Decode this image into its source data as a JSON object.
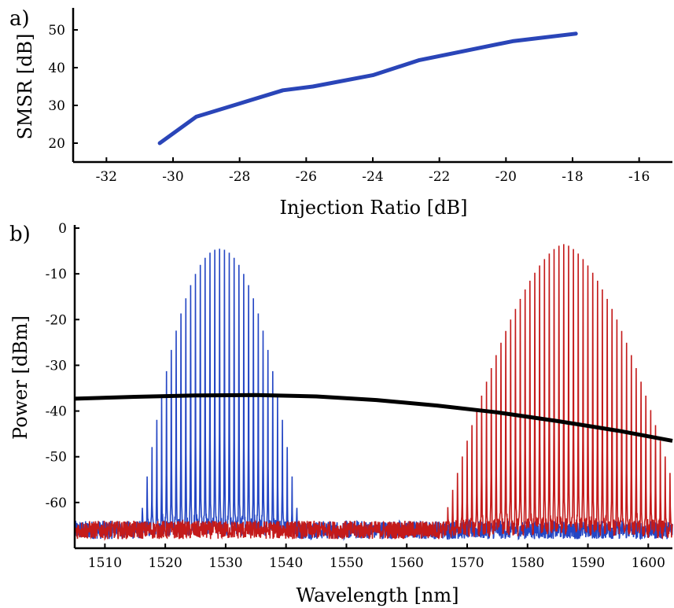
{
  "colors": {
    "smsr": "#2a45b8",
    "blue": "#2446c4",
    "red": "#c41a1a",
    "black": "#000000"
  },
  "panel_a": {
    "label": "a)"
  },
  "panel_b": {
    "label": "b)"
  },
  "chart_data": [
    {
      "type": "line",
      "xlabel": "Injection Ratio [dB]",
      "ylabel": "SMSR [dB]",
      "xlim": [
        -33,
        -15
      ],
      "ylim": [
        15,
        55
      ],
      "xticks": [
        -32,
        -30,
        -28,
        -26,
        -24,
        -22,
        -20,
        -18,
        -16
      ],
      "yticks": [
        20,
        30,
        40,
        50
      ],
      "series": [
        {
          "x": [
            -30.4,
            -29.3,
            -28,
            -26.7,
            -25.8,
            -24,
            -22.6,
            -21.2,
            -19.8,
            -17.9
          ],
          "y": [
            20,
            27,
            30.5,
            34,
            35,
            38,
            42,
            44.5,
            47,
            49
          ]
        }
      ]
    },
    {
      "type": "line",
      "xlabel": "Wavelength [nm]",
      "ylabel": "Power [dBm]",
      "xlim": [
        1505,
        1604
      ],
      "ylim": [
        -70,
        0
      ],
      "xticks": [
        1510,
        1520,
        1530,
        1540,
        1550,
        1560,
        1570,
        1580,
        1590,
        1600
      ],
      "yticks": [
        0,
        -10,
        -20,
        -30,
        -40,
        -50,
        -60
      ],
      "series": [
        {
          "kind": "comb",
          "center": 1529,
          "spacing": 0.8,
          "peak": -4.5,
          "halfwidth": 10.5,
          "shape": 2,
          "floor": -66,
          "span": [
            1505,
            1604
          ]
        },
        {
          "kind": "comb",
          "center": 1586,
          "spacing": 0.8,
          "peak": -3.5,
          "halfwidth": 15,
          "shape": 1.6,
          "floor": -66,
          "span": [
            1505,
            1604
          ]
        },
        {
          "kind": "curve",
          "x": [
            1505,
            1515,
            1525,
            1535,
            1545,
            1555,
            1565,
            1575,
            1585,
            1595,
            1604
          ],
          "y": [
            -37.3,
            -36.9,
            -36.6,
            -36.5,
            -36.8,
            -37.6,
            -38.8,
            -40.3,
            -42.2,
            -44.3,
            -46.5
          ]
        }
      ]
    }
  ]
}
